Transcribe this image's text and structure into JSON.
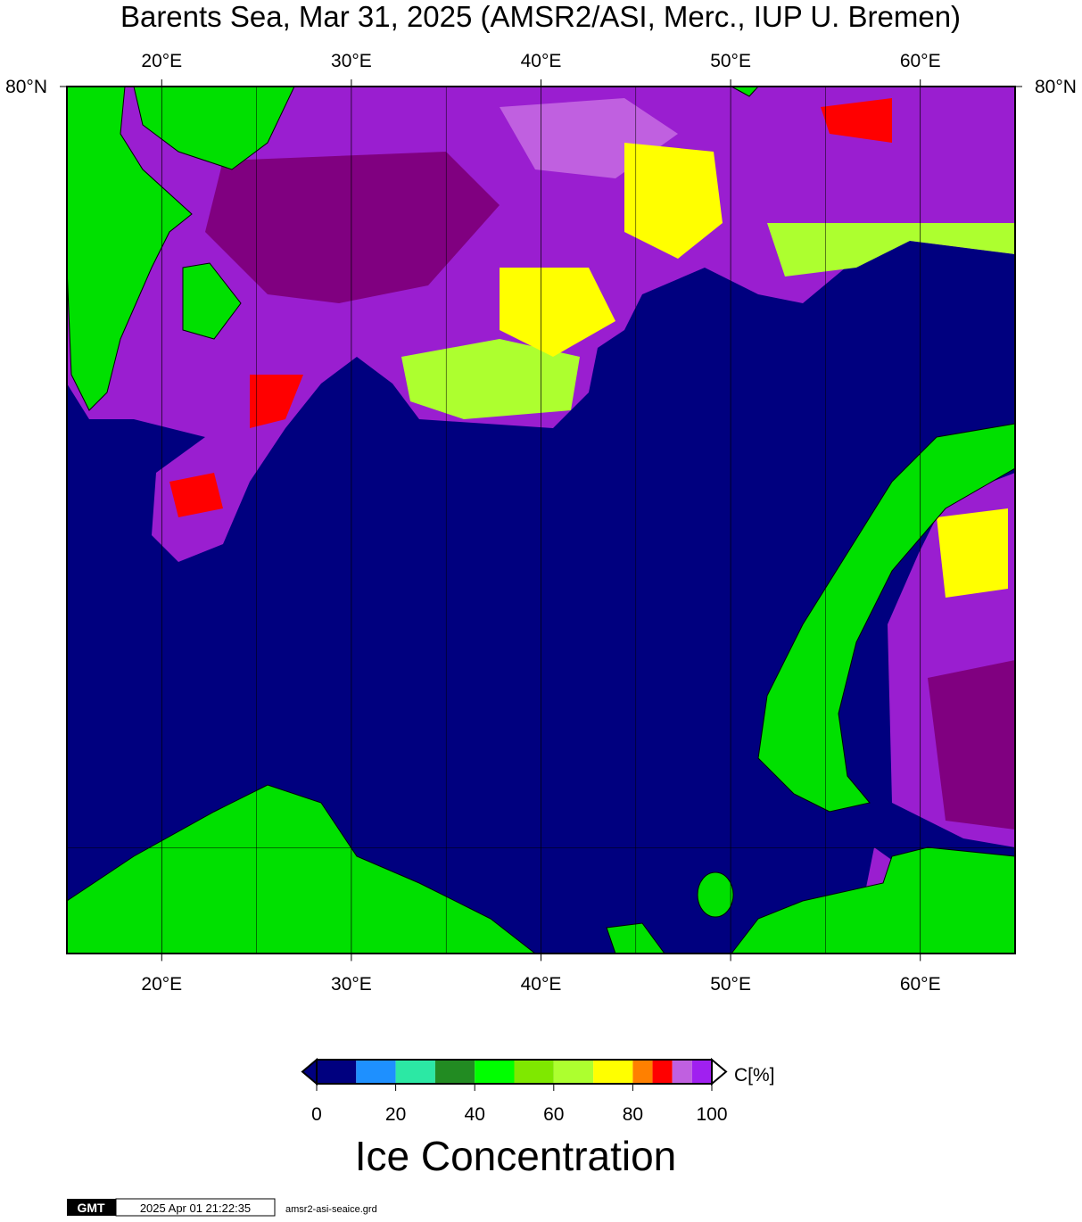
{
  "title": "Barents Sea, Mar 31, 2025 (AMSR2/ASI, Merc., IUP U. Bremen)",
  "map": {
    "projection": "mercator",
    "xlim": [
      15,
      65
    ],
    "ylim": [
      68,
      80
    ],
    "xticks": [
      {
        "value": 20,
        "label": "20°E"
      },
      {
        "value": 30,
        "label": "30°E"
      },
      {
        "value": 40,
        "label": "40°E"
      },
      {
        "value": 50,
        "label": "50°E"
      },
      {
        "value": 60,
        "label": "60°E"
      }
    ],
    "minor_xgrid": [
      25,
      35,
      45,
      55
    ],
    "yticks": [
      {
        "value": 80,
        "label": "80°N"
      }
    ],
    "ygrid": [
      70
    ]
  },
  "colorbar": {
    "bins": [
      0,
      10,
      20,
      30,
      40,
      50,
      60,
      70,
      80,
      85,
      90,
      95,
      100
    ],
    "colors": [
      "#00007f",
      "#1e90ff",
      "#2ce8a4",
      "#228b22",
      "#00ff00",
      "#7fe800",
      "#adff2f",
      "#ffff00",
      "#ff8000",
      "#ff0000",
      "#c060e0",
      "#a020f0"
    ],
    "ticks": [
      0,
      20,
      40,
      60,
      80,
      100
    ],
    "unit": "C[%]",
    "title": "Ice Concentration"
  },
  "footer": {
    "logo": "GMT",
    "timestamp": "2025 Apr 01 21:22:35",
    "file": "amsr2-asi-seaice.grd"
  }
}
